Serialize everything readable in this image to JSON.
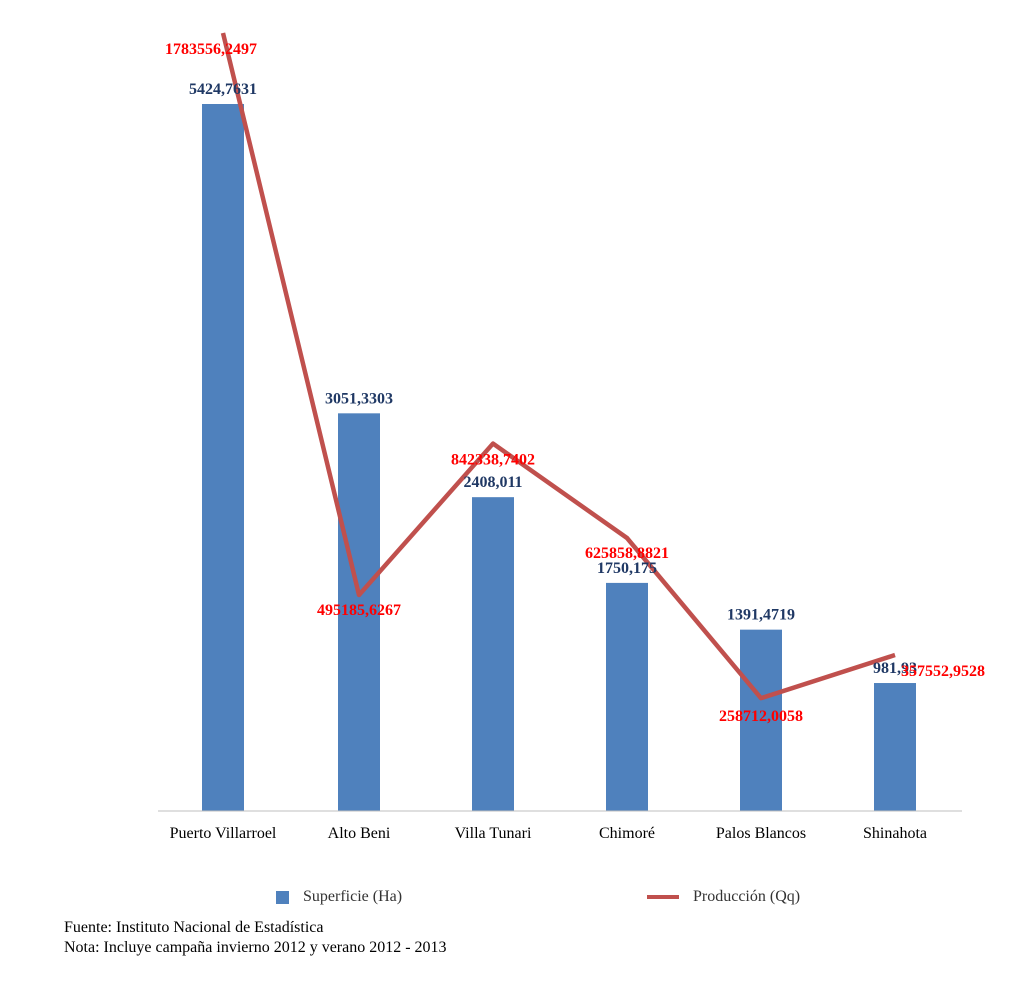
{
  "chart_data": {
    "type": "bar",
    "categories": [
      "Puerto Villarroel",
      "Alto Beni",
      "Villa Tunari",
      "Chimoré",
      "Palos Blancos",
      "Shinahota"
    ],
    "series": [
      {
        "name": "Superficie (Ha)",
        "type": "bar",
        "color": "#4f81bd",
        "values": [
          5424.7631,
          3051.3303,
          2408.011,
          1750.175,
          1391.4719,
          981.93
        ],
        "labels": [
          "5424,7631",
          "3051,3303",
          "2408,011",
          "1750,175",
          "1391,4719",
          "981,93"
        ]
      },
      {
        "name": "Producción (Qq)",
        "type": "line",
        "color": "#c0504d",
        "values": [
          1783556.2497,
          495185.6267,
          842338.7402,
          625858.8821,
          258712.0058,
          357552.9528
        ],
        "labels": [
          "1783556,2497",
          "495185,6267",
          "842338,7402",
          "625858,8821",
          "258712,0058",
          "357552,9528"
        ]
      }
    ],
    "ylim_bar": [
      0,
      6000
    ],
    "ylim_line": [
      0,
      2000000
    ],
    "label_color_bar": "#1f3864",
    "label_color_line": "#ff0000",
    "legend_position": "bottom"
  },
  "legend": {
    "bar_label": "Superficie (Ha)",
    "line_label": "Producción (Qq)"
  },
  "notes": {
    "source": "Fuente: Instituto Nacional de Estadística",
    "note": "Nota: Incluye campaña invierno 2012 y verano 2012 - 2013"
  }
}
